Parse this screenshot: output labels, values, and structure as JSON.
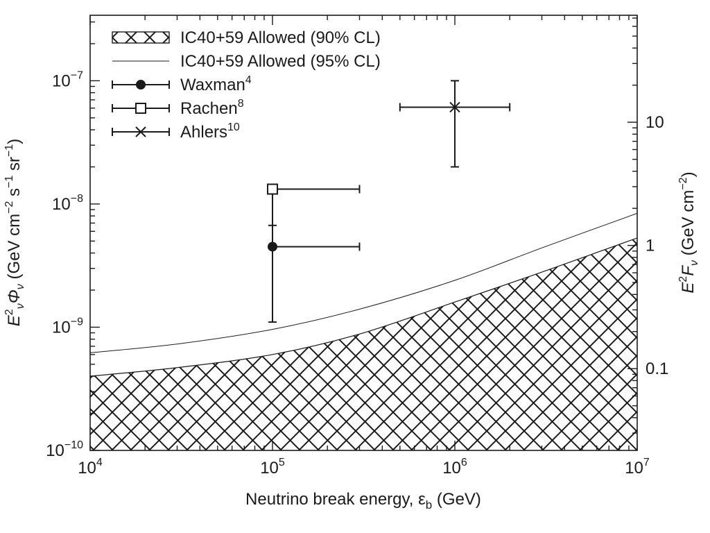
{
  "chart_data": {
    "type": "scatter",
    "xlabel": "Neutrino break energy, ε",
    "xlabel_sub": "b",
    "xlabel_unit": " (GeV)",
    "ylabel": "E",
    "ylabel_sup": "2",
    "ylabel_sub": "ν",
    "ylabel_phi": "Φ",
    "ylabel_phi_sub": "ν",
    "ylabel_unit_a": " (GeV cm",
    "ylabel_unit_a_sup": "−2",
    "ylabel_unit_b": " s",
    "ylabel_unit_b_sup": "−1",
    "ylabel_unit_c": " sr",
    "ylabel_unit_c_sup": "−1",
    "ylabel_unit_end": ")",
    "y2label": "E",
    "y2label_sup": "2",
    "y2label_F": "F",
    "y2label_F_sub": "ν",
    "y2label_unit": " (GeV cm",
    "y2label_unit_sup": "−2",
    "y2label_unit_end": ")",
    "x_scale": "log",
    "y_scale": "log",
    "xlim": [
      10000,
      10000000
    ],
    "ylim": [
      1e-10,
      3.4e-07
    ],
    "y2lim": [
      0.0217,
      73.8
    ],
    "x_ticks": [
      {
        "value": 10000,
        "base": "10",
        "exp": "4"
      },
      {
        "value": 100000,
        "base": "10",
        "exp": "5"
      },
      {
        "value": 1000000,
        "base": "10",
        "exp": "6"
      },
      {
        "value": 10000000,
        "base": "10",
        "exp": "7"
      }
    ],
    "y_ticks": [
      {
        "value": 1e-10,
        "base": "10",
        "exp": "−10"
      },
      {
        "value": 1e-09,
        "base": "10",
        "exp": "−9"
      },
      {
        "value": 1e-08,
        "base": "10",
        "exp": "−8"
      },
      {
        "value": 1e-07,
        "base": "10",
        "exp": "−7"
      }
    ],
    "y2_ticks": [
      {
        "value": 0.1,
        "label": "0.1"
      },
      {
        "value": 1,
        "label": "1"
      },
      {
        "value": 10,
        "label": "10"
      }
    ],
    "grid": false,
    "legend_position": "top-left",
    "series": [
      {
        "name": "IC40+59 Allowed (90% CL)",
        "style": "hatched-area",
        "x": [
          10000,
          30000,
          100000,
          300000,
          1000000,
          3000000,
          10000000
        ],
        "y": [
          4e-10,
          4.7e-10,
          6e-10,
          8.8e-10,
          1.6e-09,
          2.8e-09,
          5.3e-09
        ]
      },
      {
        "name": "IC40+59 Allowed (95% CL)",
        "style": "line",
        "x": [
          10000,
          30000,
          100000,
          300000,
          1000000,
          3000000,
          10000000
        ],
        "y": [
          6.2e-10,
          7.3e-10,
          9.6e-10,
          1.4e-09,
          2.4e-09,
          4.4e-09,
          8.4e-09
        ]
      },
      {
        "name": "Waxman",
        "ref": "4",
        "marker": "filled-circle",
        "x": 100000,
        "y": 4.5e-09,
        "x_err": [
          100000,
          300000
        ],
        "y_err": [
          1.1e-09,
          1.4e-08
        ]
      },
      {
        "name": "Rachen",
        "ref": "8",
        "marker": "open-square",
        "x": 100000,
        "y": 1.32e-08,
        "x_err": [
          100000,
          300000
        ],
        "y_err": [
          6.7e-09,
          1.42e-08
        ]
      },
      {
        "name": "Ahlers",
        "ref": "10",
        "marker": "cross",
        "x": 1000000,
        "y": 6.1e-08,
        "x_err": [
          500000,
          2000000
        ],
        "y_err": [
          2e-08,
          1e-07
        ]
      }
    ]
  }
}
